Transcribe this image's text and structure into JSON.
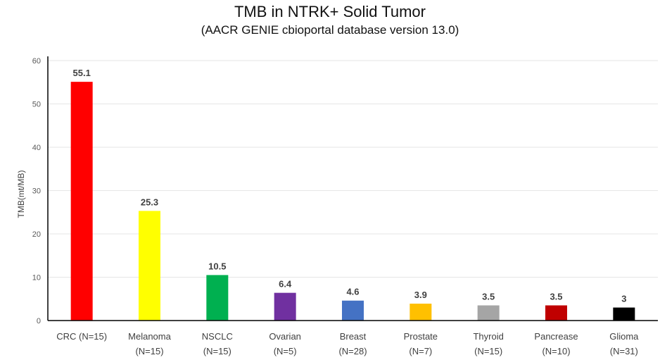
{
  "chart_data": {
    "type": "bar",
    "title": "TMB in NTRK+ Solid Tumor",
    "subtitle": "(AACR GENIE cbioportal database version 13.0)",
    "xlabel": "",
    "ylabel": "TMB(mt/MB)",
    "ylim": [
      0,
      60
    ],
    "yticks": [
      0,
      10,
      20,
      30,
      40,
      50,
      60
    ],
    "grid": true,
    "legend": "none",
    "categories": [
      [
        "CRC (N=15)"
      ],
      [
        "Melanoma",
        "(N=15)"
      ],
      [
        "NSCLC",
        "(N=15)"
      ],
      [
        "Ovarian",
        "(N=5)"
      ],
      [
        "Breast",
        "(N=28)"
      ],
      [
        "Prostate",
        "(N=7)"
      ],
      [
        "Thyroid",
        "(N=15)"
      ],
      [
        "Pancrease",
        "(N=10)"
      ],
      [
        "Glioma",
        "(N=31)"
      ]
    ],
    "values": [
      55.1,
      25.3,
      10.5,
      6.4,
      4.6,
      3.9,
      3.5,
      3.5,
      3
    ],
    "data_labels": [
      "55.1",
      "25.3",
      "10.5",
      "6.4",
      "4.6",
      "3.9",
      "3.5",
      "3.5",
      "3"
    ],
    "colors": [
      "#ff0000",
      "#ffff00",
      "#00b050",
      "#7030a0",
      "#4472c4",
      "#ffc000",
      "#a5a5a5",
      "#c00000",
      "#000000"
    ]
  }
}
